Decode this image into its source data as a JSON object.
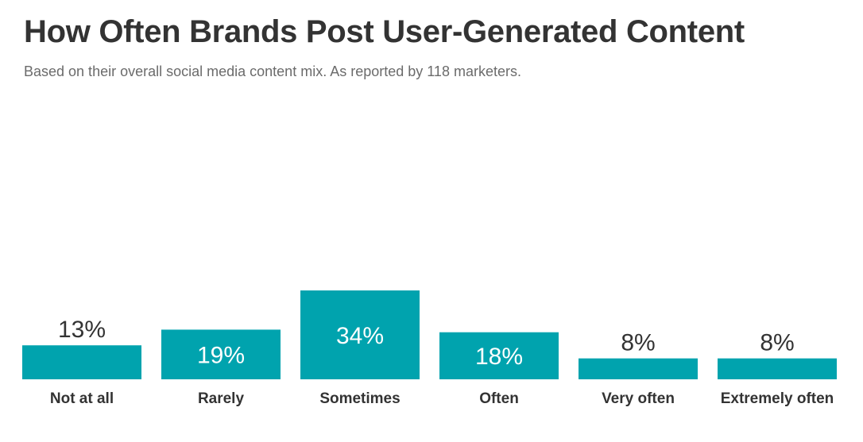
{
  "header": {
    "title": "How Often Brands Post User-Generated Content",
    "subtitle": "Based on their overall social media content mix. As reported by 118 marketers."
  },
  "colors": {
    "bar": "#00a3ae",
    "label_inside": "#ffffff",
    "label_outside": "#333333",
    "category_label": "#333333"
  },
  "chart_data": {
    "type": "bar",
    "title": "How Often Brands Post User-Generated Content",
    "subtitle": "Based on their overall social media content mix. As reported by 118 marketers.",
    "categories": [
      "Not at all",
      "Rarely",
      "Sometimes",
      "Often",
      "Very often",
      "Extremely often"
    ],
    "values": [
      13,
      19,
      34,
      18,
      8,
      8
    ],
    "value_labels": [
      "13%",
      "19%",
      "34%",
      "18%",
      "8%",
      "8%"
    ],
    "unit": "%",
    "xlabel": "",
    "ylabel": "",
    "ylim": [
      0,
      34
    ],
    "grid": false,
    "legend": "none"
  }
}
